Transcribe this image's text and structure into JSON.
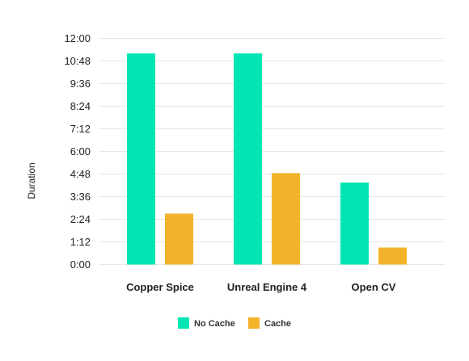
{
  "chart_data": {
    "type": "bar",
    "title": "",
    "xlabel": "",
    "ylabel": "Duration",
    "categories": [
      "Copper Spice",
      "Unreal Engine 4",
      "Open CV"
    ],
    "series": [
      {
        "name": "No Cache",
        "color": "#00E5B3",
        "values": [
          "11:12",
          "11:12",
          "4:21"
        ]
      },
      {
        "name": "Cache",
        "color": "#F2B32B",
        "values": [
          "2:42",
          "4:51",
          "0:54"
        ]
      }
    ],
    "ylim": [
      "0:00",
      "12:00"
    ],
    "yticks": [
      "0:00",
      "1:12",
      "2:24",
      "3:36",
      "4:48",
      "6:00",
      "7:12",
      "8:24",
      "9:36",
      "10:48",
      "12:00"
    ],
    "grid": true,
    "legend_position": "bottom-center"
  }
}
